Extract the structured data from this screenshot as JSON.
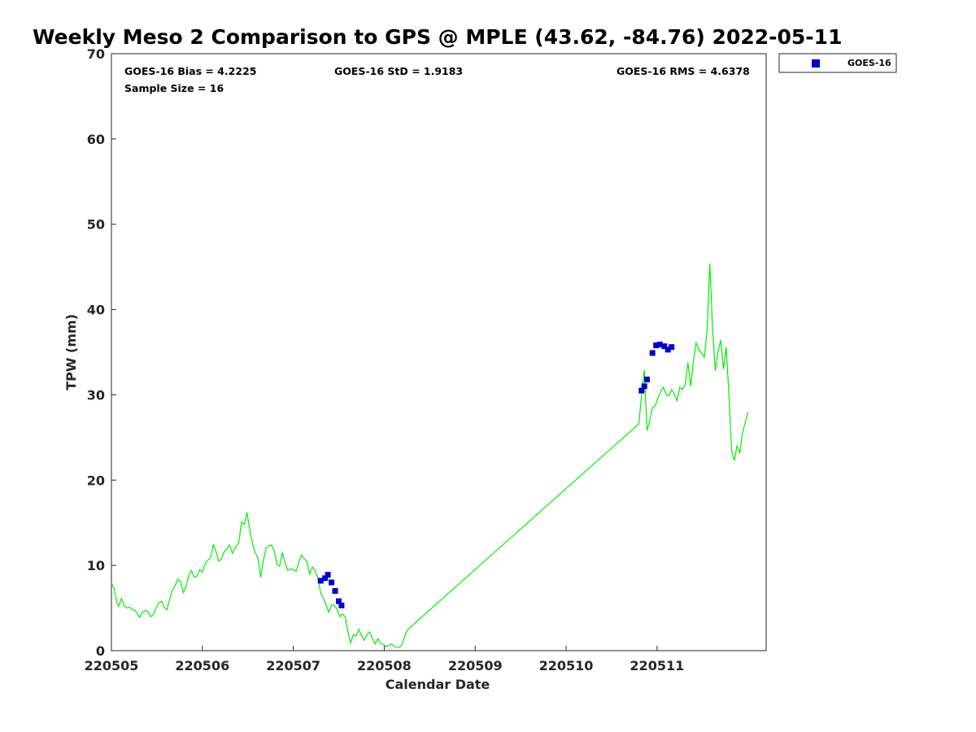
{
  "chart_data": {
    "type": "scatter",
    "title": "Weekly Meso 2 Comparison to GPS @ MPLE (43.62, -84.76) 2022-05-11",
    "xlabel": "Calendar Date",
    "ylabel": "TPW (mm)",
    "xlim": [
      220505,
      220512.2
    ],
    "ylim": [
      0,
      70
    ],
    "x_ticks": [
      "220505",
      "220506",
      "220507",
      "220508",
      "220509",
      "220510",
      "220511"
    ],
    "y_ticks": [
      "0",
      "10",
      "20",
      "30",
      "40",
      "50",
      "60",
      "70"
    ],
    "grid": false,
    "legend_position": "top-right-outside",
    "stats": {
      "bias": "GOES-16 Bias = 4.2225",
      "std": "GOES-16 StD = 1.9183",
      "rms": "GOES-16 RMS = 4.6378",
      "sample": "Sample Size = 16"
    },
    "series": [
      {
        "name": "GOES-16",
        "kind": "scatter",
        "color": "#0000cc",
        "x": [
          220507.3,
          220507.35,
          220507.38,
          220507.42,
          220507.46,
          220507.5,
          220507.53,
          220510.83,
          220510.86,
          220510.89,
          220510.95,
          220510.99,
          220511.03,
          220511.08,
          220511.12,
          220511.16
        ],
        "y": [
          8.2,
          8.5,
          8.9,
          8.0,
          7.0,
          5.8,
          5.3,
          30.5,
          31.0,
          31.8,
          34.9,
          35.8,
          35.9,
          35.7,
          35.3,
          35.6
        ]
      },
      {
        "kind": "line",
        "color": "#00ee00",
        "x": [
          220505.0,
          220505.03,
          220505.06,
          220505.08,
          220505.11,
          220505.14,
          220505.17,
          220505.2,
          220505.23,
          220505.26,
          220505.28,
          220505.31,
          220505.34,
          220505.37,
          220505.4,
          220505.43,
          220505.46,
          220505.49,
          220505.52,
          220505.55,
          220505.58,
          220505.61,
          220505.64,
          220505.67,
          220505.7,
          220505.73,
          220505.76,
          220505.79,
          220505.82,
          220505.85,
          220505.88,
          220505.91,
          220505.94,
          220505.97,
          220506.0,
          220506.03,
          220506.06,
          220506.09,
          220506.12,
          220506.15,
          220506.18,
          220506.21,
          220506.24,
          220506.27,
          220506.3,
          220506.33,
          220506.36,
          220506.4,
          220506.43,
          220506.46,
          220506.49,
          220506.52,
          220506.55,
          220506.58,
          220506.61,
          220506.64,
          220506.67,
          220506.7,
          220506.73,
          220506.76,
          220506.79,
          220506.82,
          220506.85,
          220506.88,
          220506.91,
          220506.94,
          220506.97,
          220507.0,
          220507.03,
          220507.06,
          220507.09,
          220507.12,
          220507.15,
          220507.18,
          220507.21,
          220507.24,
          220507.27,
          220507.3,
          220507.33,
          220507.36,
          220507.39,
          220507.42,
          220507.45,
          220507.48,
          220507.51,
          220507.54,
          220507.57,
          220507.6,
          220507.63,
          220507.66,
          220507.69,
          220507.72,
          220507.75,
          220507.78,
          220507.81,
          220507.84,
          220507.87,
          220507.9,
          220507.93,
          220507.96,
          220507.99,
          220508.02,
          220508.05,
          220508.08,
          220508.11,
          220508.14,
          220508.17,
          220508.2,
          220508.23,
          220508.26,
          220510.8,
          220510.83,
          220510.86,
          220510.89,
          220510.92,
          220510.95,
          220510.98,
          220511.01,
          220511.04,
          220511.07,
          220511.1,
          220511.13,
          220511.16,
          220511.19,
          220511.22,
          220511.25,
          220511.28,
          220511.31,
          220511.34,
          220511.37,
          220511.4,
          220511.43,
          220511.46,
          220511.49,
          220511.52,
          220511.55,
          220511.58,
          220511.61,
          220511.64,
          220511.67,
          220511.7,
          220511.73,
          220511.76,
          220511.79,
          220511.82,
          220511.85,
          220511.88,
          220511.91,
          220511.94,
          220511.97,
          220512.0
        ],
        "y": [
          7.9,
          7.3,
          5.6,
          5.2,
          6.1,
          5.3,
          5.0,
          5.1,
          4.8,
          4.7,
          4.4,
          3.9,
          4.5,
          4.7,
          4.6,
          4.0,
          4.2,
          5.0,
          5.6,
          5.8,
          5.1,
          4.8,
          6.0,
          7.1,
          7.6,
          8.4,
          8.1,
          6.8,
          7.5,
          8.8,
          9.4,
          8.6,
          8.7,
          9.5,
          9.2,
          10.2,
          10.6,
          10.9,
          12.4,
          11.6,
          10.5,
          10.8,
          11.6,
          11.9,
          12.4,
          11.4,
          12.1,
          12.6,
          15.1,
          14.8,
          16.2,
          14.3,
          12.6,
          11.5,
          10.9,
          8.6,
          10.5,
          12.0,
          12.3,
          12.4,
          11.7,
          10.1,
          9.9,
          11.5,
          10.3,
          9.4,
          9.6,
          9.5,
          9.3,
          10.4,
          11.2,
          10.8,
          10.4,
          9.0,
          9.8,
          9.4,
          8.5,
          6.8,
          6.2,
          5.4,
          4.5,
          5.4,
          5.3,
          4.9,
          4.0,
          4.3,
          4.0,
          2.3,
          0.9,
          1.9,
          1.7,
          2.5,
          1.8,
          1.2,
          1.9,
          2.2,
          1.4,
          0.8,
          1.4,
          0.9,
          0.7,
          0.5,
          0.6,
          0.8,
          0.5,
          0.4,
          0.4,
          0.8,
          1.9,
          2.5,
          26.6,
          30.0,
          32.9,
          25.8,
          27.0,
          28.5,
          28.7,
          29.6,
          30.4,
          30.9,
          30.0,
          29.9,
          30.6,
          30.1,
          29.3,
          30.9,
          30.6,
          31.2,
          33.8,
          31.0,
          34.0,
          36.1,
          35.3,
          34.9,
          34.4,
          37.5,
          45.4,
          38.0,
          32.8,
          35.0,
          36.4,
          33.0,
          35.6,
          30.0,
          23.5,
          22.3,
          24.0,
          23.2,
          25.5,
          26.8,
          28.0
        ]
      }
    ]
  },
  "legend": {
    "label": "GOES-16",
    "marker_color": "#0000cc"
  }
}
